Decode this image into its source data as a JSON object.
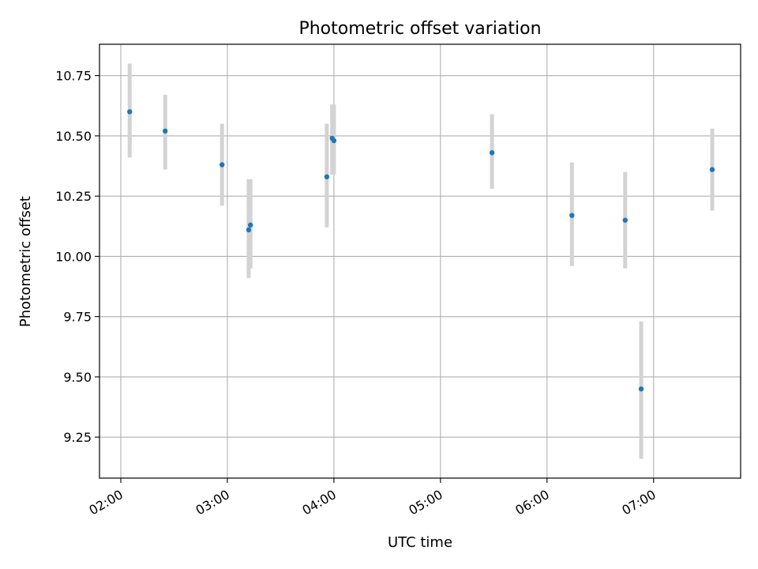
{
  "chart_data": {
    "type": "scatter",
    "title": "Photometric offset variation",
    "xlabel": "UTC time",
    "ylabel": "Photometric offset",
    "x_axis": {
      "kind": "time",
      "range": [
        "01:48",
        "07:49"
      ],
      "ticks": [
        "02:00",
        "03:00",
        "04:00",
        "05:00",
        "06:00",
        "07:00"
      ]
    },
    "y_axis": {
      "range": [
        9.08,
        10.88
      ],
      "ticks": [
        "9.25",
        "9.50",
        "9.75",
        "10.00",
        "10.25",
        "10.50",
        "10.75"
      ]
    },
    "grid": true,
    "colors": {
      "point": "#1f77b4",
      "errorbar": "#d3d3d3",
      "grid": "#b0b0b0"
    },
    "series": [
      {
        "points": [
          {
            "x": "02:05",
            "y": 10.6,
            "err_low": 10.41,
            "err_high": 10.8
          },
          {
            "x": "02:25",
            "y": 10.52,
            "err_low": 10.36,
            "err_high": 10.67
          },
          {
            "x": "02:57",
            "y": 10.38,
            "err_low": 10.21,
            "err_high": 10.55
          },
          {
            "x": "03:12",
            "y": 10.11,
            "err_low": 9.91,
            "err_high": 10.32
          },
          {
            "x": "03:13",
            "y": 10.13,
            "err_low": 9.95,
            "err_high": 10.32
          },
          {
            "x": "03:56",
            "y": 10.33,
            "err_low": 10.12,
            "err_high": 10.55
          },
          {
            "x": "03:59",
            "y": 10.49,
            "err_low": 10.34,
            "err_high": 10.63
          },
          {
            "x": "04:00",
            "y": 10.48,
            "err_low": 10.34,
            "err_high": 10.63
          },
          {
            "x": "05:29",
            "y": 10.43,
            "err_low": 10.28,
            "err_high": 10.59
          },
          {
            "x": "06:14",
            "y": 10.17,
            "err_low": 9.96,
            "err_high": 10.39
          },
          {
            "x": "06:44",
            "y": 10.15,
            "err_low": 9.95,
            "err_high": 10.35
          },
          {
            "x": "06:53",
            "y": 9.45,
            "err_low": 9.16,
            "err_high": 9.73
          },
          {
            "x": "07:33",
            "y": 10.36,
            "err_low": 10.19,
            "err_high": 10.53
          }
        ]
      }
    ]
  }
}
